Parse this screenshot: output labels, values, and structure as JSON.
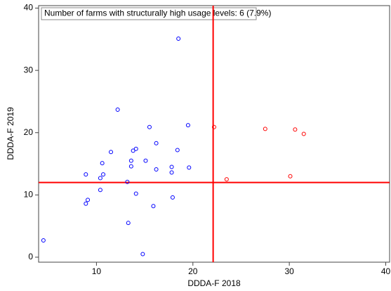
{
  "chart_data": {
    "type": "scatter",
    "xlabel": "DDDA-F 2018",
    "ylabel": "DDDA-F 2019",
    "annotation": "Number of farms with structurally high usage levels:   6 (7.9%)",
    "xlim": [
      4,
      40.4
    ],
    "ylim": [
      -0.8,
      40.4
    ],
    "xticks": [
      10,
      20,
      30,
      40
    ],
    "yticks": [
      0,
      10,
      20,
      30,
      40
    ],
    "reflines": {
      "x": 22.1,
      "y": 12.0,
      "color": "#ff0000"
    },
    "series": [
      {
        "color": "#0000ff",
        "x": [
          4.5,
          18.5,
          12.2,
          15.5,
          19.5,
          16.2,
          11.5,
          14.1,
          13.8,
          18.4,
          10.6,
          13.6,
          15.1,
          13.6,
          17.8,
          19.6,
          16.2,
          17.8,
          8.9,
          10.7,
          10.4,
          13.2,
          10.4,
          14.1,
          9.1,
          8.9,
          17.9,
          15.9,
          13.3,
          14.8
        ],
        "values": [
          2.7,
          35.1,
          23.7,
          20.9,
          21.2,
          18.3,
          16.9,
          17.4,
          17.1,
          17.2,
          15.1,
          15.5,
          15.5,
          14.6,
          14.5,
          14.4,
          14.1,
          13.6,
          13.3,
          13.3,
          12.7,
          12.1,
          10.8,
          10.2,
          9.2,
          8.6,
          9.6,
          8.2,
          5.5,
          0.5
        ]
      },
      {
        "color": "#ff0000",
        "x": [
          22.2,
          27.5,
          30.6,
          31.5,
          30.1,
          23.5
        ],
        "values": [
          20.9,
          20.6,
          20.5,
          19.8,
          13.0,
          12.5
        ]
      }
    ]
  }
}
